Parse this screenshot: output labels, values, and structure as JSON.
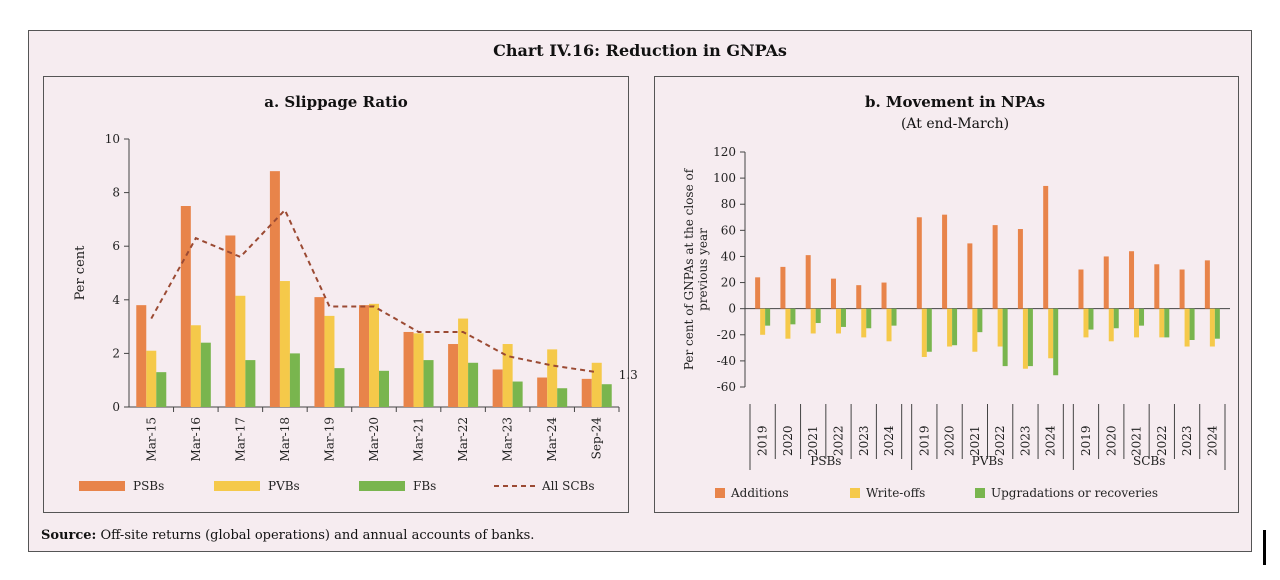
{
  "figure": {
    "title": "Chart IV.16: Reduction in GNPAs",
    "source_label": "Source:",
    "source_text": "Off-site returns (global operations) and annual accounts of banks."
  },
  "colors": {
    "PSBs": "#e8844a",
    "PVBs": "#f5c94a",
    "FBs": "#79b54e",
    "AllSCBs": "#9b4a33",
    "background": "#f6ecf0"
  },
  "chart_data": [
    {
      "type": "bar",
      "title": "a. Slippage Ratio",
      "ylabel": "Per cent",
      "ylim": [
        0,
        10
      ],
      "yticks": [
        0,
        2,
        4,
        6,
        8,
        10
      ],
      "categories": [
        "Mar-15",
        "Mar-16",
        "Mar-17",
        "Mar-18",
        "Mar-19",
        "Mar-20",
        "Mar-21",
        "Mar-22",
        "Mar-23",
        "Mar-24",
        "Sep-24"
      ],
      "series": [
        {
          "name": "PSBs",
          "values": [
            3.8,
            7.5,
            6.4,
            8.8,
            4.1,
            3.8,
            2.8,
            2.35,
            1.4,
            1.1,
            1.05
          ]
        },
        {
          "name": "PVBs",
          "values": [
            2.1,
            3.05,
            4.15,
            4.7,
            3.4,
            3.85,
            2.75,
            3.3,
            2.35,
            2.15,
            1.65
          ]
        },
        {
          "name": "FBs",
          "values": [
            1.3,
            2.4,
            1.75,
            2.0,
            1.45,
            1.35,
            1.75,
            1.65,
            0.95,
            0.7,
            0.85
          ]
        },
        {
          "name": "All SCBs",
          "type": "line",
          "dashed": true,
          "values": [
            3.3,
            6.3,
            5.6,
            7.35,
            3.75,
            3.75,
            2.8,
            2.8,
            1.9,
            1.55,
            1.3
          ]
        }
      ],
      "annotations": [
        {
          "text": "1.3"
        }
      ],
      "legend_position": "bottom"
    },
    {
      "type": "bar",
      "title": "b. Movement in NPAs",
      "subtitle": "(At end-March)",
      "ylabel": "Per cent of GNPAs at the close of previous year",
      "ylim": [
        -60,
        120
      ],
      "yticks": [
        -60,
        -40,
        -20,
        0,
        20,
        40,
        60,
        80,
        100,
        120
      ],
      "groups": [
        {
          "name": "PSBs",
          "years": [
            "2019",
            "2020",
            "2021",
            "2022",
            "2023",
            "2024"
          ],
          "series": [
            {
              "name": "Additions",
              "values": [
                24,
                32,
                41,
                23,
                18,
                20
              ]
            },
            {
              "name": "Write-offs",
              "values": [
                -20,
                -23,
                -19,
                -19,
                -22,
                -25
              ]
            },
            {
              "name": "Upgradations or recoveries",
              "values": [
                -13,
                -12,
                -11,
                -14,
                -15,
                -13
              ]
            }
          ]
        },
        {
          "name": "PVBs",
          "years": [
            "2019",
            "2020",
            "2021",
            "2022",
            "2023",
            "2024"
          ],
          "series": [
            {
              "name": "Additions",
              "values": [
                70,
                72,
                50,
                64,
                61,
                94
              ]
            },
            {
              "name": "Write-offs",
              "values": [
                -37,
                -29,
                -33,
                -29,
                -46,
                -38
              ]
            },
            {
              "name": "Upgradations or recoveries",
              "values": [
                -33,
                -28,
                -18,
                -44,
                -44,
                -51
              ]
            }
          ]
        },
        {
          "name": "SCBs",
          "years": [
            "2019",
            "2020",
            "2021",
            "2022",
            "2023",
            "2024"
          ],
          "series": [
            {
              "name": "Additions",
              "values": [
                30,
                40,
                44,
                34,
                30,
                37
              ]
            },
            {
              "name": "Write-offs",
              "values": [
                -22,
                -25,
                -22,
                -22,
                -29,
                -29
              ]
            },
            {
              "name": "Upgradations or recoveries",
              "values": [
                -16,
                -15,
                -13,
                -22,
                -24,
                -23
              ]
            }
          ]
        }
      ],
      "legend_position": "bottom"
    }
  ]
}
